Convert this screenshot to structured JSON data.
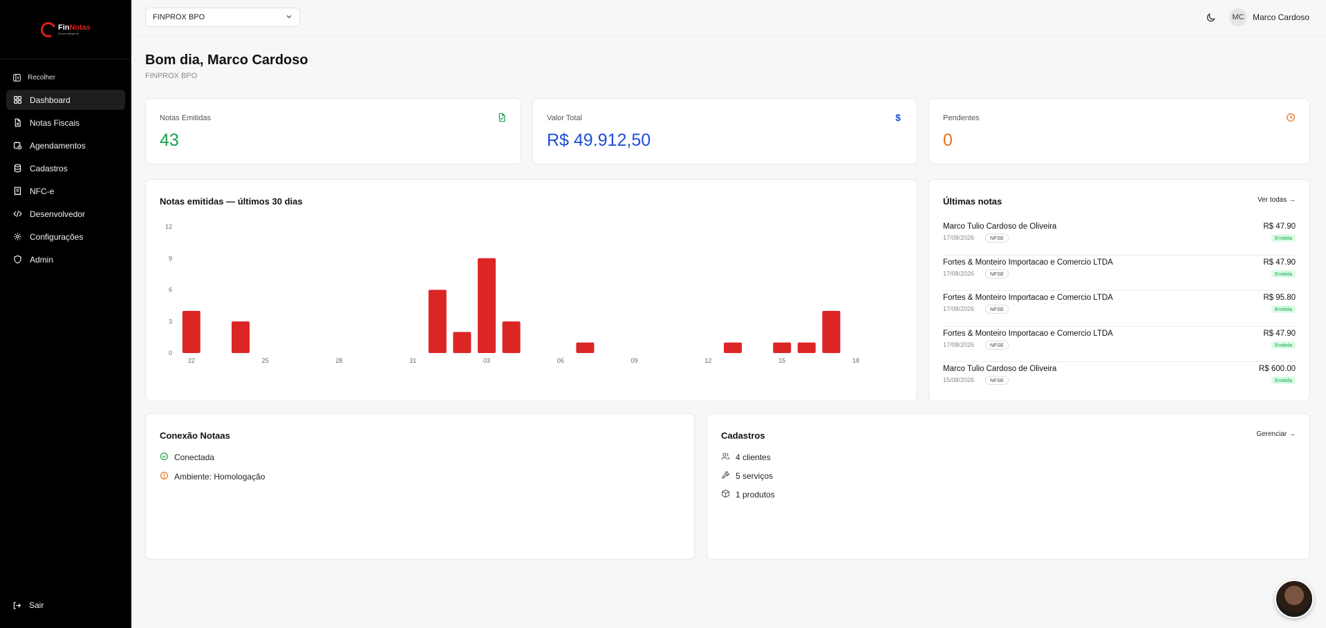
{
  "app": {
    "logo_name_part1": "Fin",
    "logo_name_part2": "Notas",
    "logo_sub": "Fiscal Inteligente",
    "brand_color": "#e11d1d"
  },
  "sidebar": {
    "collapse_label": "Recolher",
    "items": [
      {
        "label": "Dashboard",
        "icon": "grid-icon"
      },
      {
        "label": "Notas Fiscais",
        "icon": "file-icon"
      },
      {
        "label": "Agendamentos",
        "icon": "calendar-clock-icon"
      },
      {
        "label": "Cadastros",
        "icon": "database-icon"
      },
      {
        "label": "NFC-e",
        "icon": "receipt-icon"
      },
      {
        "label": "Desenvolvedor",
        "icon": "code-icon"
      },
      {
        "label": "Configurações",
        "icon": "gear-icon"
      },
      {
        "label": "Admin",
        "icon": "shield-icon"
      }
    ],
    "active_index": 0,
    "logout_label": "Sair"
  },
  "topbar": {
    "company": "FINPROX BPO",
    "user_initials": "MC",
    "user_name": "Marco Cardoso"
  },
  "header": {
    "greeting": "Bom dia, Marco Cardoso",
    "company": "FINPROX BPO"
  },
  "kpis": [
    {
      "label": "Notas Emitidas",
      "value": "43",
      "color": "#16a34a",
      "icon": "file-check-icon"
    },
    {
      "label": "Valor Total",
      "value": "R$ 49.912,50",
      "color": "#1d4ed8",
      "icon": "dollar-icon"
    },
    {
      "label": "Pendentes",
      "value": "0",
      "color": "#ea7317",
      "icon": "clock-icon"
    }
  ],
  "chart_card": {
    "title": "Notas emitidas — últimos 30 dias"
  },
  "chart_data": {
    "type": "bar",
    "title": "Notas emitidas — últimos 30 dias",
    "categories": [
      "22",
      "23",
      "24",
      "25",
      "26",
      "27",
      "28",
      "29",
      "30",
      "31",
      "01",
      "02",
      "03",
      "04",
      "05",
      "06",
      "07",
      "08",
      "09",
      "10",
      "11",
      "12",
      "13",
      "14",
      "15",
      "16",
      "17",
      "18"
    ],
    "values": [
      4,
      0,
      3,
      0,
      0,
      0,
      0,
      0,
      0,
      0,
      6,
      2,
      9,
      3,
      0,
      0,
      1,
      0,
      0,
      0,
      0,
      0,
      1,
      0,
      1,
      1,
      4,
      0
    ],
    "x_tick_labels": [
      "22",
      "25",
      "28",
      "31",
      "03",
      "06",
      "09",
      "12",
      "15",
      "18"
    ],
    "y_ticks": [
      "0",
      "3",
      "6",
      "9",
      "12"
    ],
    "ylim": [
      0,
      12
    ],
    "grid": false,
    "bar_color": "#dc2626"
  },
  "latest_notes": {
    "title": "Últimas notas",
    "link": "Ver todas",
    "items": [
      {
        "name": "Marco Tulio Cardoso de Oliveira",
        "date": "17/08/2026",
        "type": "NFSE",
        "value": "R$ 47.90",
        "status": "Emitida"
      },
      {
        "name": "Fortes & Monteiro Importacao e Comercio LTDA",
        "date": "17/08/2026",
        "type": "NFSE",
        "value": "R$ 47.90",
        "status": "Emitida"
      },
      {
        "name": "Fortes & Monteiro Importacao e Comercio LTDA",
        "date": "17/08/2026",
        "type": "NFSE",
        "value": "R$ 95.80",
        "status": "Emitida"
      },
      {
        "name": "Fortes & Monteiro Importacao e Comercio LTDA",
        "date": "17/08/2026",
        "type": "NFSE",
        "value": "R$ 47.90",
        "status": "Emitida"
      },
      {
        "name": "Marco Tulio Cardoso de Oliveira",
        "date": "15/08/2026",
        "type": "NFSE",
        "value": "R$ 600.00",
        "status": "Emitida"
      }
    ]
  },
  "connection": {
    "title": "Conexão Notaas",
    "status": "Conectada",
    "environment": "Ambiente: Homologação"
  },
  "cadastros": {
    "title": "Cadastros",
    "link": "Gerenciar",
    "clients": "4 clientes",
    "services": "5 serviços",
    "products": "1 produtos"
  }
}
